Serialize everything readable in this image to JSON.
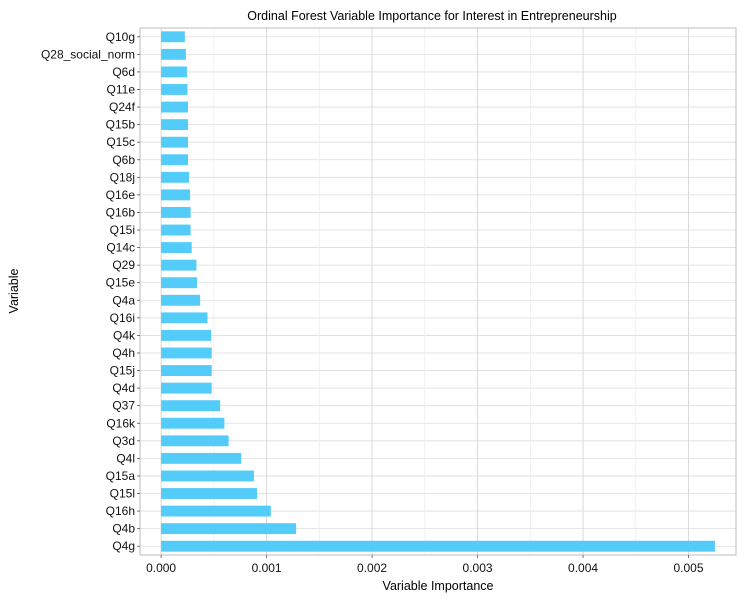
{
  "chart_data": {
    "type": "bar",
    "orientation": "horizontal",
    "title": "Ordinal Forest Variable Importance for Interest in Entrepreneurship",
    "xlabel": "Variable Importance",
    "ylabel": "Variable",
    "xlim": [
      -0.0002,
      0.00545
    ],
    "x_ticks": [
      0.0,
      0.001,
      0.002,
      0.003,
      0.004,
      0.005
    ],
    "x_tick_labels": [
      "0.000",
      "0.001",
      "0.002",
      "0.003",
      "0.004",
      "0.005"
    ],
    "grid": true,
    "bar_color": "#54CCF9",
    "categories": [
      "Q10g",
      "Q28_social_norm",
      "Q6d",
      "Q11e",
      "Q24f",
      "Q15b",
      "Q15c",
      "Q6b",
      "Q18j",
      "Q16e",
      "Q16b",
      "Q15i",
      "Q14c",
      "Q29",
      "Q15e",
      "Q4a",
      "Q16i",
      "Q4k",
      "Q4h",
      "Q15j",
      "Q4d",
      "Q37",
      "Q16k",
      "Q3d",
      "Q4l",
      "Q15a",
      "Q15l",
      "Q16h",
      "Q4b",
      "Q4g"
    ],
    "values": [
      0.000225,
      0.000235,
      0.000245,
      0.00025,
      0.000255,
      0.000255,
      0.000255,
      0.000255,
      0.000265,
      0.000275,
      0.00028,
      0.00028,
      0.00029,
      0.000335,
      0.00034,
      0.00037,
      0.00044,
      0.000475,
      0.00048,
      0.00048,
      0.00048,
      0.00056,
      0.0006,
      0.00064,
      0.00076,
      0.00088,
      0.00091,
      0.00104,
      0.00128,
      0.00525
    ]
  }
}
